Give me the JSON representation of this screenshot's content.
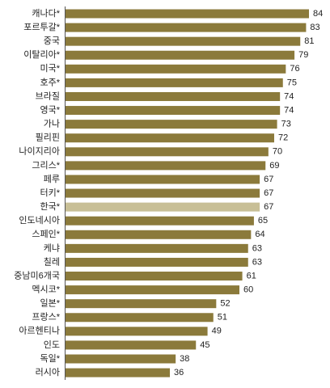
{
  "chart_data": {
    "type": "bar",
    "orientation": "horizontal",
    "categories": [
      "캐나다*",
      "포르투갈*",
      "중국",
      "이탈리아*",
      "미국*",
      "호주*",
      "브라질",
      "영국*",
      "가나",
      "필리핀",
      "나이지리아",
      "그리스*",
      "페루",
      "터키*",
      "한국*",
      "인도네시아",
      "스페인*",
      "케냐",
      "칠레",
      "중남미6개국",
      "멕시코*",
      "일본*",
      "프랑스*",
      "아르헨티나",
      "인도",
      "독일*",
      "러시아"
    ],
    "values": [
      84,
      83,
      81,
      79,
      76,
      75,
      74,
      74,
      73,
      72,
      70,
      69,
      67,
      67,
      67,
      65,
      64,
      63,
      63,
      61,
      60,
      52,
      51,
      49,
      45,
      38,
      36
    ],
    "colors": [
      "#8b7a3b",
      "#8b7a3b",
      "#8b7a3b",
      "#8b7a3b",
      "#8b7a3b",
      "#8b7a3b",
      "#8b7a3b",
      "#8b7a3b",
      "#8b7a3b",
      "#8b7a3b",
      "#8b7a3b",
      "#8b7a3b",
      "#8b7a3b",
      "#8b7a3b",
      "#c8bf96",
      "#8b7a3b",
      "#8b7a3b",
      "#8b7a3b",
      "#8b7a3b",
      "#8b7a3b",
      "#8b7a3b",
      "#8b7a3b",
      "#8b7a3b",
      "#8b7a3b",
      "#8b7a3b",
      "#8b7a3b",
      "#8b7a3b"
    ]
  }
}
